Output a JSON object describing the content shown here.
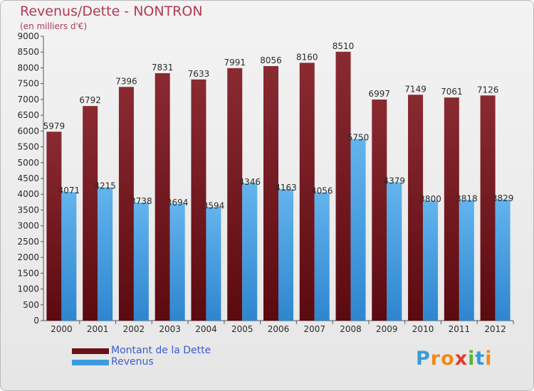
{
  "header": {
    "title": "Revenus/Dette - NONTRON",
    "subtitle": "(en milliers d'€)"
  },
  "legend": {
    "items": [
      {
        "label": "Montant de la Dette",
        "color": "#6b0f16"
      },
      {
        "label": "Revenus",
        "color": "#3d9be0"
      }
    ]
  },
  "logo": {
    "text": "Proxiti"
  },
  "colors": {
    "title": "#b03a55",
    "dette_top": "#8a2a31",
    "dette_bottom": "#5b0a10",
    "revenus_top": "#63b4ee",
    "revenus_bottom": "#2e86cf"
  },
  "chart_data": {
    "type": "bar",
    "title": "Revenus/Dette - NONTRON",
    "subtitle": "(en milliers d'€)",
    "categories": [
      "2000",
      "2001",
      "2002",
      "2003",
      "2004",
      "2005",
      "2006",
      "2007",
      "2008",
      "2009",
      "2010",
      "2011",
      "2012"
    ],
    "series": [
      {
        "name": "Montant de la Dette",
        "values": [
          5979,
          6792,
          7396,
          7831,
          7633,
          7991,
          8056,
          8160,
          8510,
          6997,
          7149,
          7061,
          7126
        ]
      },
      {
        "name": "Revenus",
        "values": [
          4071,
          4215,
          3738,
          3694,
          3594,
          4346,
          4163,
          4056,
          5750,
          4379,
          3800,
          3818,
          3829
        ]
      }
    ],
    "ylim": [
      0,
      9000
    ],
    "ytick_step": 500,
    "grid": false,
    "legend_position": "bottom-left"
  }
}
